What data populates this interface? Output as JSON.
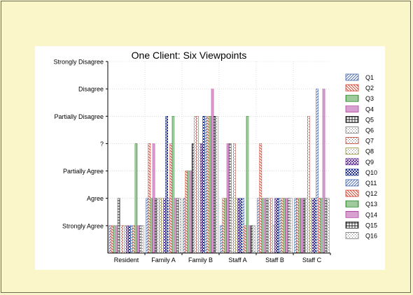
{
  "chart_data": {
    "type": "bar",
    "title": "One Client:  Six Viewpoints",
    "xlabel": "",
    "ylabel": "",
    "categories": [
      "Resident",
      "Family A",
      "Family B",
      "Staff A",
      "Staff B",
      "Staff C"
    ],
    "y_tick_labels": [
      "Strongly Agree",
      "Agree",
      "Partially Agree",
      "?",
      "Partially Disagree",
      "Disagree",
      "Strongly Disagree"
    ],
    "ylim": [
      0,
      7
    ],
    "grid": true,
    "legend_position": "right",
    "series": [
      {
        "name": "Q1",
        "values": [
          1,
          2,
          2,
          1,
          2,
          2
        ],
        "color": "#3c5fa8",
        "pattern": "diag-up"
      },
      {
        "name": "Q2",
        "values": [
          1,
          4,
          3,
          2,
          4,
          2
        ],
        "color": "#d0321e",
        "pattern": "diag-down"
      },
      {
        "name": "Q3",
        "values": [
          1,
          2,
          3,
          2,
          2,
          2
        ],
        "color": "#2a8a2a",
        "pattern": "vertical"
      },
      {
        "name": "Q4",
        "values": [
          1,
          4,
          3,
          4,
          2,
          2
        ],
        "color": "#b040a0",
        "pattern": "horizontal"
      },
      {
        "name": "Q5",
        "values": [
          2,
          2,
          4,
          4,
          2,
          2
        ],
        "color": "#222222",
        "pattern": "grid"
      },
      {
        "name": "Q6",
        "values": [
          1,
          2,
          5,
          2,
          2,
          2
        ],
        "color": "#777777",
        "pattern": "dots"
      },
      {
        "name": "Q7",
        "values": [
          1,
          2,
          5,
          4,
          2,
          5
        ],
        "color": "#c0392b",
        "pattern": "dots"
      },
      {
        "name": "Q8",
        "values": [
          1,
          2,
          4,
          2,
          1,
          2
        ],
        "color": "#8a8a20",
        "pattern": "dots"
      },
      {
        "name": "Q9",
        "values": [
          1,
          2,
          4,
          2,
          2,
          2
        ],
        "color": "#6a3a9a",
        "pattern": "dense"
      },
      {
        "name": "Q10",
        "values": [
          1,
          5,
          5,
          2,
          2,
          2
        ],
        "color": "#1a2a8a",
        "pattern": "checker"
      },
      {
        "name": "Q11",
        "values": [
          1,
          2,
          5,
          2,
          2,
          6
        ],
        "color": "#3c5fa8",
        "pattern": "diag-up"
      },
      {
        "name": "Q12",
        "values": [
          1,
          4,
          5,
          1,
          2,
          2
        ],
        "color": "#d0321e",
        "pattern": "diag-down"
      },
      {
        "name": "Q13",
        "values": [
          4,
          5,
          5,
          5,
          2,
          2
        ],
        "color": "#2a8a2a",
        "pattern": "vertical"
      },
      {
        "name": "Q14",
        "values": [
          1,
          2,
          6,
          1,
          2,
          6
        ],
        "color": "#b040a0",
        "pattern": "horizontal"
      },
      {
        "name": "Q15",
        "values": [
          1,
          2,
          5,
          1,
          2,
          2
        ],
        "color": "#222222",
        "pattern": "grid"
      },
      {
        "name": "Q16",
        "values": [
          1,
          2,
          5,
          1,
          2,
          2
        ],
        "color": "#777777",
        "pattern": "dots"
      }
    ]
  }
}
